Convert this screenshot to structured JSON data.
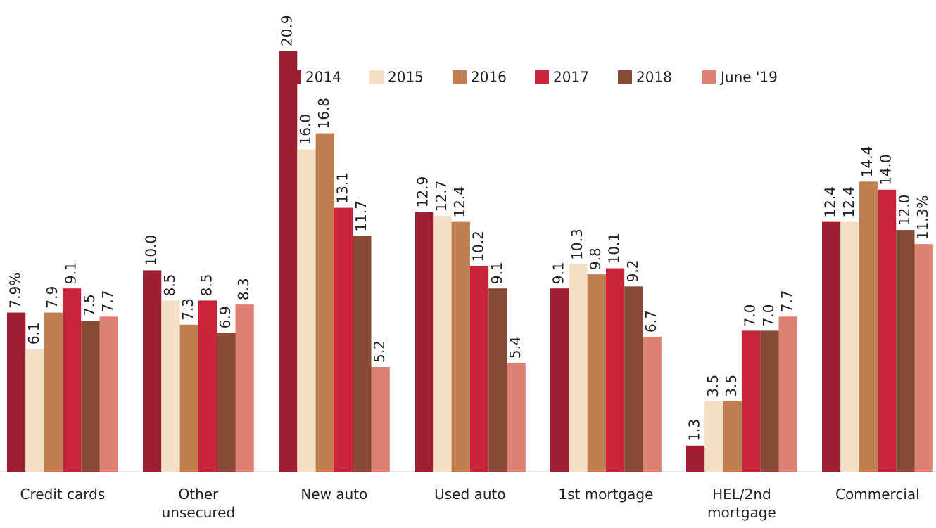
{
  "chart_data": {
    "type": "bar",
    "categories": [
      "Credit cards",
      "Other unsecured",
      "New auto",
      "Used auto",
      "1st mortgage",
      "HEL/2nd mortgage",
      "Commercial"
    ],
    "series": [
      {
        "name": "2014",
        "color": "#9e1f32",
        "values": [
          7.9,
          10.0,
          20.9,
          12.9,
          9.1,
          1.3,
          12.4
        ],
        "value_labels": [
          "7.9%",
          "10.0",
          "20.9",
          "12.9",
          "9.1",
          "1.3",
          "12.4"
        ]
      },
      {
        "name": "2015",
        "color": "#f4dfc4",
        "values": [
          6.1,
          8.5,
          16.0,
          12.7,
          10.3,
          3.5,
          12.4
        ],
        "value_labels": [
          "6.1",
          "8.5",
          "16.0",
          "12.7",
          "10.3",
          "3.5",
          "12.4"
        ]
      },
      {
        "name": "2016",
        "color": "#bf7f52",
        "values": [
          7.9,
          7.3,
          16.8,
          12.4,
          9.8,
          3.5,
          14.4
        ],
        "value_labels": [
          "7.9",
          "7.3",
          "16.8",
          "12.4",
          "9.8",
          "3.5",
          "14.4"
        ]
      },
      {
        "name": "2017",
        "color": "#c8243b",
        "values": [
          9.1,
          8.5,
          13.1,
          10.2,
          10.1,
          7.0,
          14.0
        ],
        "value_labels": [
          "9.1",
          "8.5",
          "13.1",
          "10.2",
          "10.1",
          "7.0",
          "14.0"
        ]
      },
      {
        "name": "2018",
        "color": "#864a36",
        "values": [
          7.5,
          6.9,
          11.7,
          9.1,
          9.2,
          7.0,
          12.0
        ],
        "value_labels": [
          "7.5",
          "6.9",
          "11.7",
          "9.1",
          "9.2",
          "7.0",
          "12.0"
        ]
      },
      {
        "name": "June '19",
        "color": "#dd8272",
        "values": [
          7.7,
          8.3,
          5.2,
          5.4,
          6.7,
          7.7,
          11.3
        ],
        "value_labels": [
          "7.7",
          "8.3",
          "5.2",
          "5.4",
          "6.7",
          "7.7",
          "11.3%"
        ]
      }
    ]
  }
}
